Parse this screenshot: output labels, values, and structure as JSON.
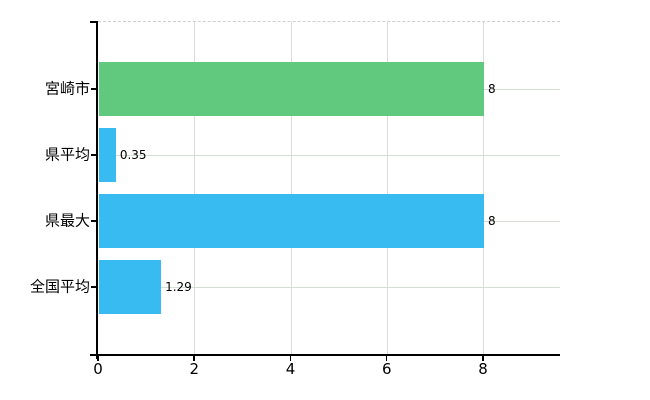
{
  "chart_data": {
    "type": "bar",
    "orientation": "horizontal",
    "categories": [
      "宮崎市",
      "県平均",
      "県最大",
      "全国平均"
    ],
    "values": [
      8,
      0.35,
      8,
      1.29
    ],
    "value_labels": [
      "8",
      "0.35",
      "8",
      "1.29"
    ],
    "bar_colors": [
      "#61c97d",
      "#38bbf0",
      "#38bbf0",
      "#38bbf0"
    ],
    "x_ticks": [
      0,
      2,
      4,
      6,
      8
    ],
    "x_tick_labels": [
      "0",
      "2",
      "4",
      "6",
      "8"
    ],
    "xlim": [
      0,
      9.6
    ],
    "grid": true,
    "legend": "none"
  },
  "colors": {
    "background": "#ffffff",
    "bar_green": "#61c97d",
    "bar_blue": "#38bbf0",
    "grid_vertical": "#dcdcdc",
    "grid_horizontal": "#d5ded5",
    "plot_border_dashed": "#cfcfcf",
    "axis": "#000000",
    "text": "#000000"
  }
}
